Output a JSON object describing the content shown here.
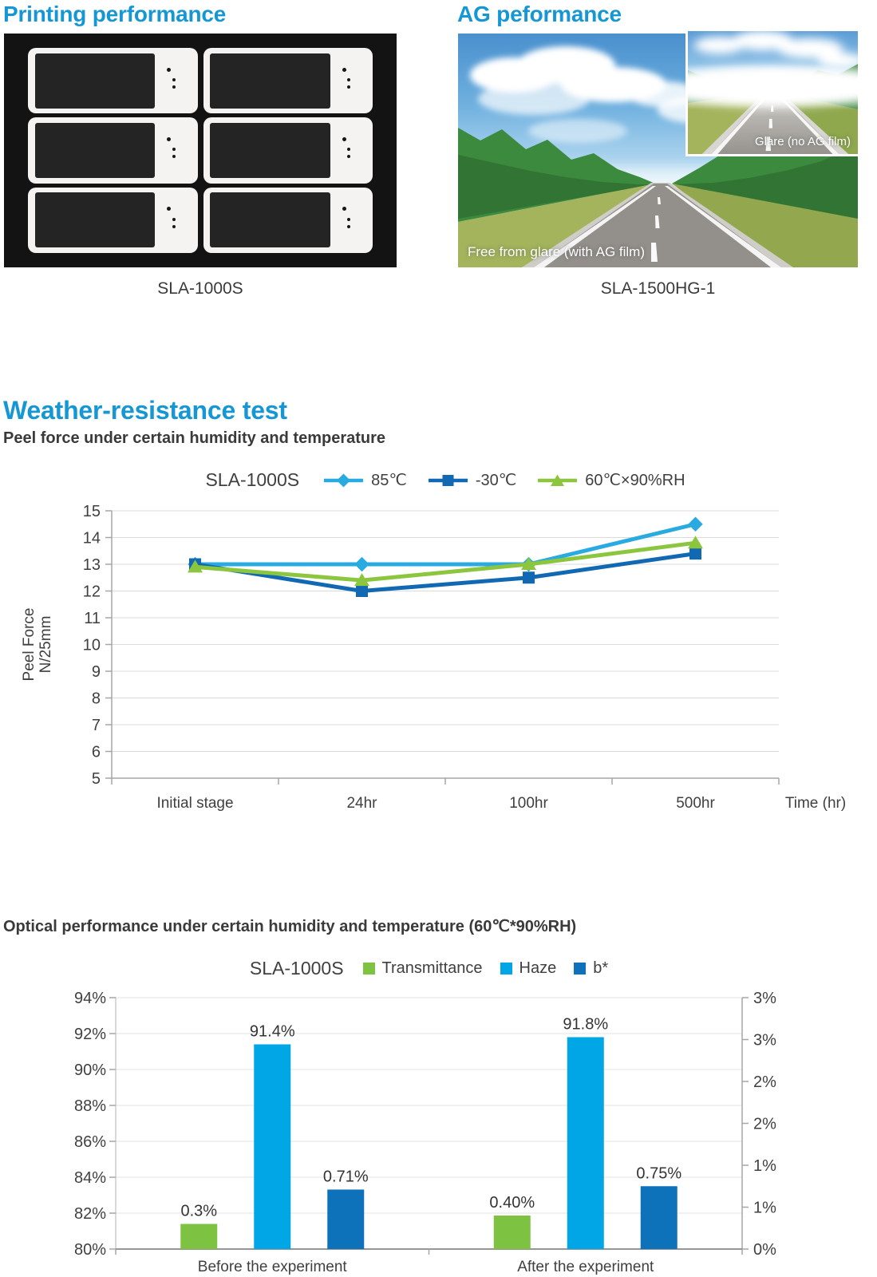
{
  "page": {
    "heading_color": "#1697D5",
    "text_color": "#3A3A3A",
    "background": "#FFFFFF"
  },
  "sections": {
    "printing": {
      "heading": "Printing performance",
      "caption": "SLA-1000S",
      "panel_rows": 3,
      "panel_cols": 2
    },
    "ag": {
      "heading": "AG peformance",
      "caption": "SLA-1500HG-1",
      "main_photo_label": "Free from glare (with AG film)",
      "inset_photo_label": "Glare (no AG film)"
    },
    "weather": {
      "heading": "Weather-resistance test",
      "subheading": "Peel force under certain humidity and temperature"
    },
    "optical": {
      "heading": "Optical performance under certain humidity and temperature (60℃*90%RH)"
    }
  },
  "chart_data": [
    {
      "id": "peel_force_line",
      "type": "line",
      "title": "SLA-1000S",
      "categories": [
        "Initial stage",
        "24hr",
        "100hr",
        "500hr"
      ],
      "series": [
        {
          "name": "85℃",
          "values": [
            13.0,
            13.0,
            13.0,
            14.5
          ],
          "color": "#29ABE2",
          "marker": "diamond"
        },
        {
          "name": "-30℃",
          "values": [
            13.0,
            12.0,
            12.5,
            13.4
          ],
          "color": "#1169B4",
          "marker": "square"
        },
        {
          "name": "60℃×90%RH",
          "values": [
            12.9,
            12.4,
            13.0,
            13.8
          ],
          "color": "#8CC63F",
          "marker": "triangle"
        }
      ],
      "xlabel": "Time (hr)",
      "ylabel_lines": [
        "Peel Force",
        "N/25mm"
      ],
      "ylim": [
        5,
        15
      ],
      "ytick_step": 1,
      "grid": true,
      "legend_position": "top"
    },
    {
      "id": "optical_bars",
      "type": "bar",
      "title": "SLA-1000S",
      "categories": [
        "Before the experiment",
        "After the experiment"
      ],
      "series": [
        {
          "name": "Transmittance",
          "color": "#7EC242",
          "axis": "right",
          "values": [
            0.3,
            0.4
          ],
          "labels": [
            "0.3%",
            "0.40%"
          ]
        },
        {
          "name": "Haze",
          "color": "#00A6E6",
          "axis": "left",
          "values": [
            91.4,
            91.8
          ],
          "labels": [
            "91.4%",
            "91.8%"
          ]
        },
        {
          "name": "b*",
          "color": "#0D72BA",
          "axis": "right",
          "values": [
            0.71,
            0.75
          ],
          "labels": [
            "0.71%",
            "0.75%"
          ]
        }
      ],
      "left_axis": {
        "min": 80,
        "max": 94,
        "ticks": [
          "94%",
          "92%",
          "90%",
          "88%",
          "86%",
          "84%",
          "82%",
          "80%"
        ]
      },
      "right_axis": {
        "min": 0,
        "max": 3,
        "ticks": [
          "3%",
          "3%",
          "2%",
          "2%",
          "1%",
          "1%",
          "0%"
        ]
      },
      "grid": true,
      "legend_position": "top"
    }
  ]
}
